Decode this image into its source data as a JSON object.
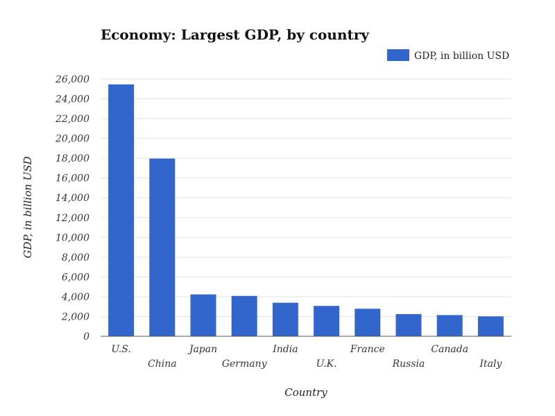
{
  "chart_data": {
    "type": "bar",
    "title": "Economy: Largest GDP, by country",
    "xlabel": "Country",
    "ylabel": "GDP, in billion USD",
    "categories": [
      "U.S.",
      "China",
      "Japan",
      "Germany",
      "India",
      "U.K.",
      "France",
      "Russia",
      "Canada",
      "Italy"
    ],
    "series": [
      {
        "name": "GDP, in billion USD",
        "color": "#3366cc",
        "values": [
          25460,
          17960,
          4230,
          4080,
          3390,
          3070,
          2780,
          2240,
          2140,
          2010
        ]
      }
    ],
    "ylim": [
      0,
      26000
    ],
    "yticks": [
      0,
      2000,
      4000,
      6000,
      8000,
      10000,
      12000,
      14000,
      16000,
      18000,
      20000,
      22000,
      24000,
      26000
    ],
    "ytick_labels": [
      "0",
      "2,000",
      "4,000",
      "6,000",
      "8,000",
      "10,000",
      "12,000",
      "14,000",
      "16,000",
      "18,000",
      "20,000",
      "22,000",
      "24,000",
      "26,000"
    ],
    "grid": true,
    "legend_position": "top-right"
  }
}
